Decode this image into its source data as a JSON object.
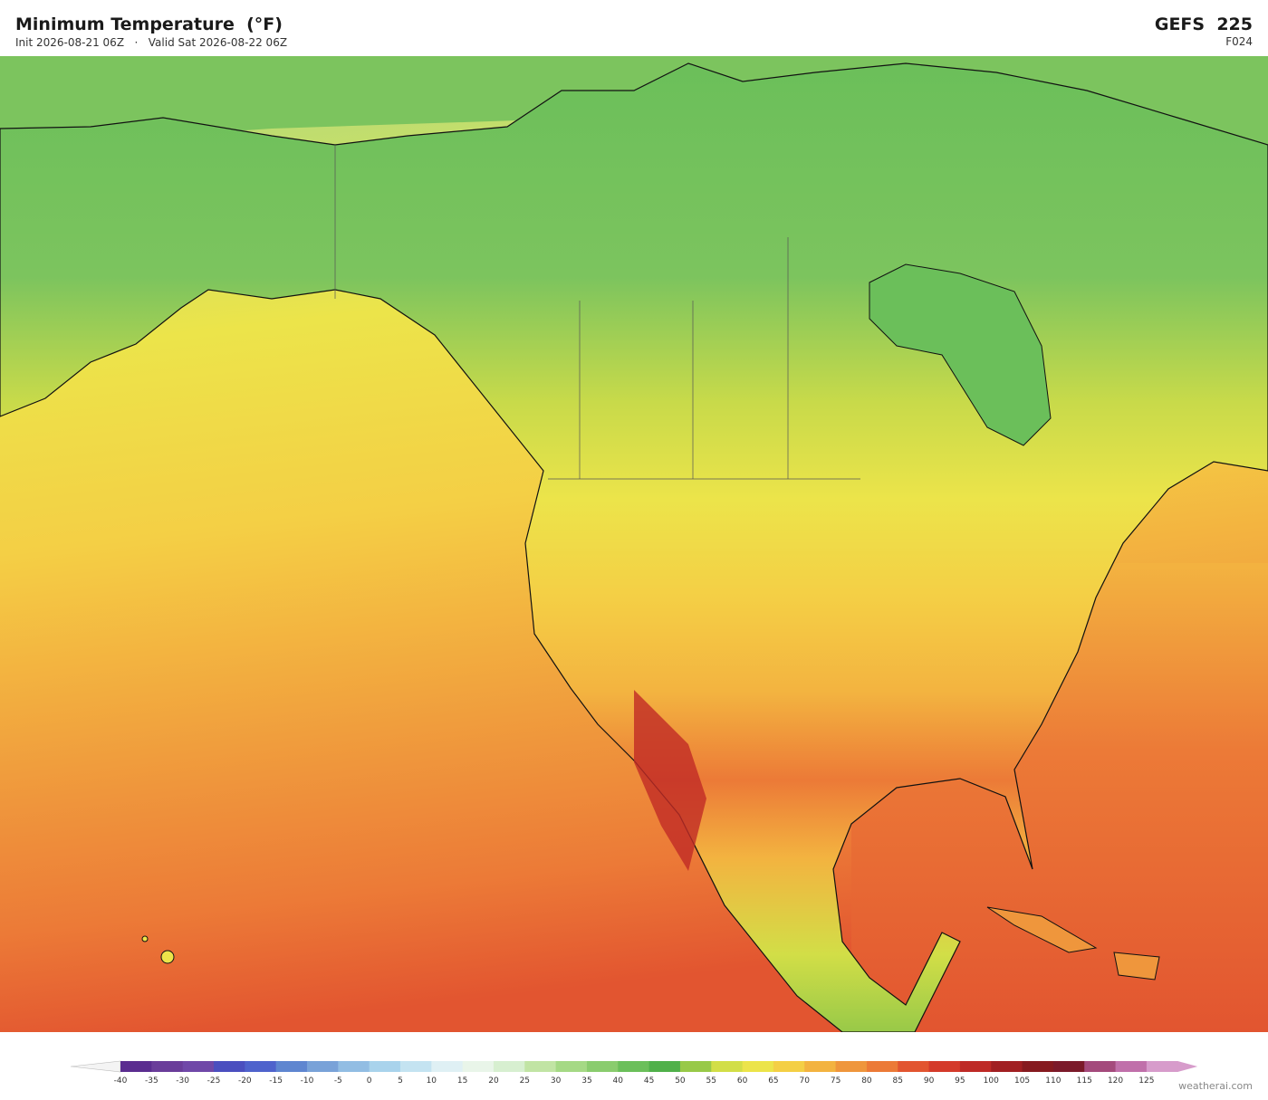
{
  "header": {
    "title": "Minimum Temperature  (°F)",
    "init": "Init 2026-08-21 06Z",
    "separator": "·",
    "valid": "Valid Sat 2026-08-22 06Z",
    "model": "GEFS  225",
    "forecast_hour": "F024"
  },
  "colorbar": {
    "levels": [
      -40,
      -35,
      -30,
      -25,
      -20,
      -15,
      -10,
      -5,
      0,
      5,
      10,
      15,
      20,
      25,
      30,
      35,
      40,
      45,
      50,
      55,
      60,
      65,
      70,
      75,
      80,
      85,
      90,
      95,
      100,
      105,
      110,
      115,
      120,
      125
    ],
    "colors": [
      "#5b2d90",
      "#6a3d9a",
      "#7048a8",
      "#4b4fbf",
      "#4f63cc",
      "#5f86d0",
      "#79a2d8",
      "#92bde3",
      "#a9d3ec",
      "#c4e3f1",
      "#dff0f4",
      "#e9f5e9",
      "#d7efd0",
      "#c1e4a4",
      "#a5d985",
      "#8acc6e",
      "#6bbf5a",
      "#50b04a",
      "#98c948",
      "#d2de47",
      "#ece44a",
      "#f4cf45",
      "#f3b340",
      "#ef963c",
      "#ec7a37",
      "#e25530",
      "#d43a2a",
      "#be2a26",
      "#a11f22",
      "#861a1f",
      "#7b1a2a",
      "#a44a7c",
      "#c070aa",
      "#d79ccb"
    ]
  },
  "watermark": "weatherai.com"
}
